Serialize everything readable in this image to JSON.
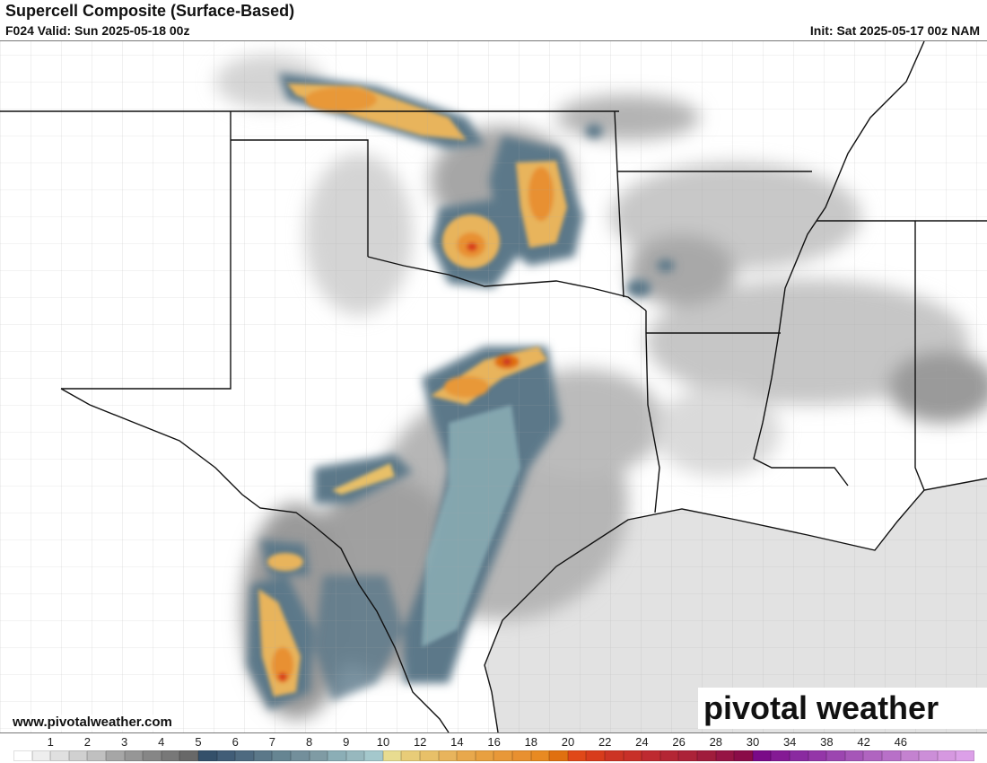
{
  "header": {
    "title": "Supercell Composite (Surface-Based)",
    "valid": "F024 Valid: Sun 2025-05-18 00z",
    "init": "Init: Sat 2025-05-17 00z NAM"
  },
  "footer": {
    "website": "www.pivotalweather.com",
    "logo_text": "pivotal weather"
  },
  "colorbar": {
    "labels": [
      "1",
      "2",
      "3",
      "4",
      "5",
      "6",
      "7",
      "8",
      "9",
      "10",
      "12",
      "14",
      "16",
      "18",
      "20",
      "22",
      "24",
      "26",
      "28",
      "30",
      "34",
      "38",
      "42",
      "46"
    ],
    "colors": [
      "#ffffff",
      "#eeeeee",
      "#e0e0e0",
      "#d0d0d0",
      "#c0c0c0",
      "#a6a6a6",
      "#969696",
      "#868686",
      "#787878",
      "#686868",
      "#34506a",
      "#415d77",
      "#4e6a80",
      "#5b7889",
      "#668592",
      "#738f9b",
      "#7f9ba4",
      "#8baeb6",
      "#97b8be",
      "#a4c8cc",
      "#e8dc90",
      "#e8cc78",
      "#e8c068",
      "#e8b45c",
      "#e8a84c",
      "#e8a040",
      "#e89838",
      "#e89030",
      "#e88a22",
      "#e07010",
      "#e04818",
      "#d83c1c",
      "#cc3424",
      "#c83028",
      "#be2a30",
      "#b42634",
      "#ac2238",
      "#a01c3c",
      "#961444",
      "#8a0c48",
      "#7a0a88",
      "#841a94",
      "#8a2aa0",
      "#9436a8",
      "#9c46b0",
      "#a656b8",
      "#b064c0",
      "#b870c8",
      "#c482d0",
      "#cc8ed8",
      "#d698e0",
      "#dca0e8"
    ]
  },
  "map": {
    "ocean_color": "#e2e2e2",
    "border_color": "#111111",
    "county_color": "#9a9a9a"
  }
}
